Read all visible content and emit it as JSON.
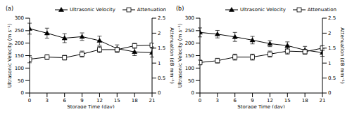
{
  "chart_data": [
    {
      "type": "line",
      "title": "(a)",
      "xlabel": "Storage Time (day)",
      "ylabel": "Ultrasonic Velocity (m s⁻¹)",
      "y2label": "Attenuation (dB mm⁻¹)",
      "x": [
        0,
        3,
        6,
        9,
        12,
        15,
        18,
        21
      ],
      "xlim": [
        0,
        21
      ],
      "xticks": [
        0,
        3,
        6,
        9,
        12,
        15,
        18,
        21
      ],
      "ylim": [
        0,
        300
      ],
      "yticks": [
        0,
        50,
        100,
        150,
        200,
        250,
        300
      ],
      "y2lim": [
        0,
        2.5
      ],
      "y2ticks": [
        0,
        0.5,
        1,
        1.5,
        2,
        2.5
      ],
      "grid": false,
      "legend": "top",
      "series": [
        {
          "name": "Ultrasonic Velocity",
          "color": "#000000",
          "marker": "triangle",
          "values": [
            258,
            240,
            220,
            226,
            210,
            178,
            165,
            162
          ],
          "errors": [
            22,
            20,
            18,
            15,
            18,
            15,
            15,
            18
          ]
        },
        {
          "name": "Attenuation",
          "color": "#000000",
          "marker": "square",
          "axis": "y2",
          "values": [
            1.13,
            1.2,
            1.18,
            1.3,
            1.45,
            1.45,
            1.58,
            1.6
          ],
          "errors": [
            0.12,
            0.08,
            0.08,
            0.1,
            0.1,
            0.08,
            0.08,
            0.06
          ]
        }
      ]
    },
    {
      "type": "line",
      "title": "(b)",
      "xlabel": "Storage Time (day)",
      "ylabel": "Ultrasonic Velocity (m s⁻¹)",
      "y2label": "Attenuation (dB mm⁻¹)",
      "x": [
        0,
        3,
        6,
        9,
        12,
        15,
        18,
        21
      ],
      "xlim": [
        0,
        21
      ],
      "xticks": [
        0,
        3,
        6,
        9,
        12,
        15,
        18,
        21
      ],
      "ylim": [
        0,
        300
      ],
      "yticks": [
        0,
        50,
        100,
        150,
        200,
        250,
        300
      ],
      "y2lim": [
        0,
        2.5
      ],
      "y2ticks": [
        0,
        0.5,
        1,
        1.5,
        2,
        2.5
      ],
      "grid": false,
      "legend": "top",
      "series": [
        {
          "name": "Ultrasonic Velocity",
          "color": "#000000",
          "marker": "triangle",
          "values": [
            243,
            236,
            225,
            212,
            198,
            190,
            172,
            162
          ],
          "errors": [
            18,
            15,
            18,
            15,
            12,
            15,
            15,
            15
          ]
        },
        {
          "name": "Attenuation",
          "color": "#000000",
          "marker": "square",
          "axis": "y2",
          "values": [
            1.02,
            1.08,
            1.2,
            1.2,
            1.3,
            1.4,
            1.38,
            1.5
          ],
          "errors": [
            0.08,
            0.08,
            0.1,
            0.1,
            0.1,
            0.1,
            0.08,
            0.08
          ]
        }
      ]
    }
  ]
}
